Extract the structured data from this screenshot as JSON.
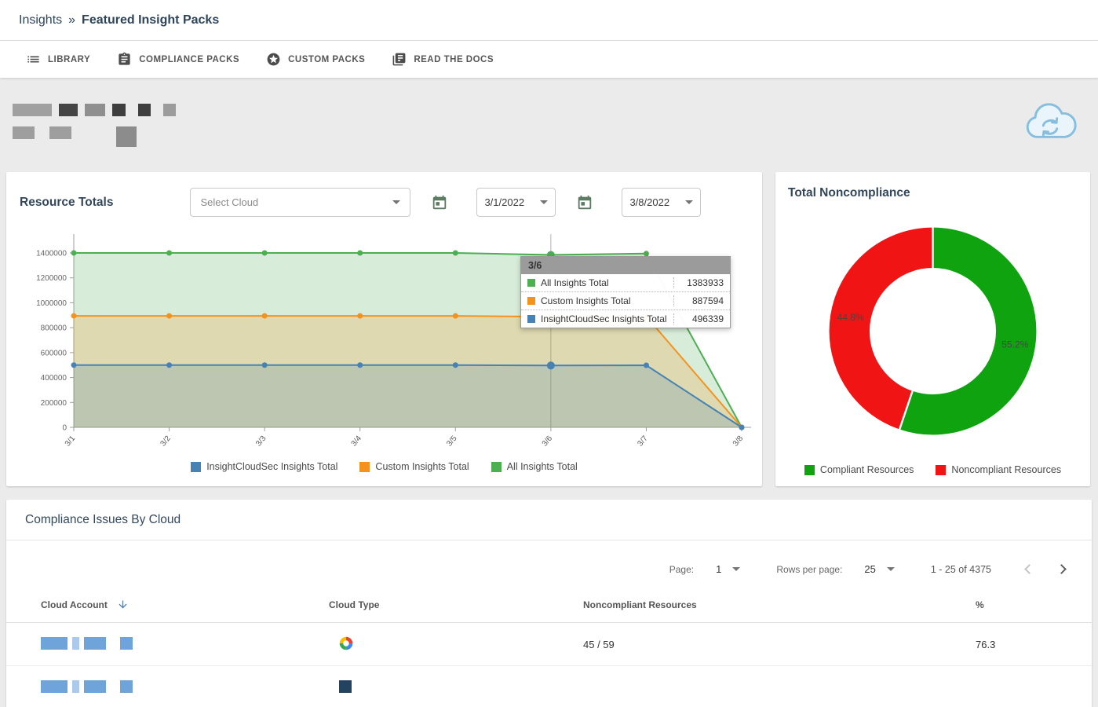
{
  "breadcrumb": {
    "root": "Insights",
    "separator": "»",
    "current": "Featured Insight Packs"
  },
  "tabs": [
    {
      "label": "LIBRARY"
    },
    {
      "label": "COMPLIANCE PACKS"
    },
    {
      "label": "CUSTOM PACKS"
    },
    {
      "label": "READ THE DOCS"
    }
  ],
  "resource_totals": {
    "title": "Resource Totals",
    "cloud_select_value": "Select Cloud",
    "date_from": "3/1/2022",
    "date_to": "3/8/2022"
  },
  "noncompliance_card": {
    "title": "Total Noncompliance"
  },
  "chart_data": [
    {
      "type": "area",
      "title": "Resource Totals",
      "x": [
        "3/1",
        "3/2",
        "3/3",
        "3/4",
        "3/5",
        "3/6",
        "3/7",
        "3/8"
      ],
      "ylim": [
        0,
        1400000
      ],
      "yticks": [
        0,
        200000,
        400000,
        600000,
        800000,
        1000000,
        1200000,
        1400000
      ],
      "grid": false,
      "legend_position": "bottom",
      "series": [
        {
          "name": "All Insights Total",
          "color": "#4caf50",
          "values": [
            1400000,
            1400000,
            1400000,
            1400000,
            1400000,
            1383933,
            1395000,
            0
          ]
        },
        {
          "name": "Custom Insights Total",
          "color": "#f5921e",
          "values": [
            895000,
            895000,
            895000,
            895000,
            895000,
            887594,
            890000,
            0
          ]
        },
        {
          "name": "InsightCloudSec Insights Total",
          "color": "#4682b4",
          "values": [
            500000,
            500000,
            500000,
            500000,
            500000,
            496339,
            498000,
            0
          ]
        }
      ],
      "legend": [
        "InsightCloudSec Insights Total",
        "Custom Insights Total",
        "All Insights Total"
      ],
      "highlight_x": "3/6",
      "tooltip": {
        "label": "3/6",
        "rows": [
          {
            "name": "All Insights Total",
            "value": "1383933",
            "color": "#4caf50"
          },
          {
            "name": "Custom Insights Total",
            "value": "887594",
            "color": "#f5921e"
          },
          {
            "name": "InsightCloudSec Insights Total",
            "value": "496339",
            "color": "#4682b4"
          }
        ]
      }
    },
    {
      "type": "pie",
      "title": "Total Noncompliance",
      "donut": true,
      "labels": [
        "Compliant Resources",
        "Noncompliant Resources"
      ],
      "values": [
        55.2,
        44.8
      ],
      "display_labels": [
        "55.2%",
        "44.8%"
      ],
      "colors": [
        "#0fa40f",
        "#f01414"
      ],
      "legend_position": "bottom"
    }
  ],
  "compliance_table": {
    "title": "Compliance Issues By Cloud",
    "pagination": {
      "page_label": "Page:",
      "page_value": "1",
      "rows_label": "Rows per page:",
      "rows_value": "25",
      "range_text": "1 - 25 of 4375"
    },
    "columns": [
      "Cloud Account",
      "Cloud Type",
      "Noncompliant Resources",
      "%"
    ],
    "rows": [
      {
        "account_redacted": true,
        "cloud_type_icon": "google-cloud",
        "noncompliant_resources": "45 / 59",
        "percent": "76.3"
      },
      {
        "account_redacted": true,
        "cloud_type_icon": "dark-square",
        "noncompliant_resources": "",
        "percent": ""
      }
    ]
  }
}
